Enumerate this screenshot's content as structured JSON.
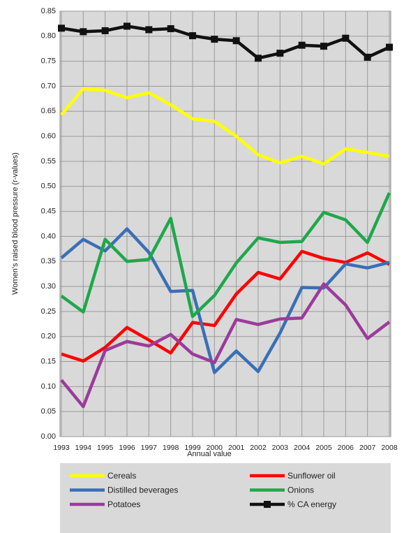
{
  "chart_data": {
    "type": "line",
    "xlabel": "Annual value",
    "ylabel": "Women's raised blood pressure (r-values)",
    "categories": [
      "1993",
      "1994",
      "1995",
      "1996",
      "1997",
      "1998",
      "1999",
      "2000",
      "2001",
      "2002",
      "2003",
      "2004",
      "2005",
      "2006",
      "2007",
      "2008"
    ],
    "ylim": [
      0,
      0.85
    ],
    "yticks": [
      {
        "value": 0,
        "label": "0.00"
      },
      0.05,
      {
        "value": 0.1,
        "label": "0.10"
      },
      0.15,
      {
        "value": 0.2,
        "label": "0.20"
      },
      0.25,
      {
        "value": 0.3,
        "label": "0.30"
      },
      0.35,
      {
        "value": 0.4,
        "label": "0.40"
      },
      0.45,
      {
        "value": 0.5,
        "label": "0.50"
      },
      0.55,
      {
        "value": 0.6,
        "label": "0.60"
      },
      0.65,
      {
        "value": 0.7,
        "label": "0.70"
      },
      0.75,
      {
        "value": 0.8,
        "label": "0.80"
      },
      0.85
    ],
    "grid": true,
    "legend": "bottom",
    "series": [
      {
        "name": "Cereals",
        "color": "#ffff00",
        "values": [
          0.643,
          0.695,
          0.692,
          0.677,
          0.687,
          0.663,
          0.635,
          0.63,
          0.6,
          0.563,
          0.547,
          0.56,
          0.545,
          0.575,
          0.568,
          0.56
        ]
      },
      {
        "name": "Sunflower oil",
        "color": "#ff0000",
        "values": [
          0.165,
          0.151,
          0.178,
          0.218,
          0.193,
          0.167,
          0.228,
          0.222,
          0.285,
          0.328,
          0.315,
          0.37,
          0.356,
          0.348,
          0.367,
          0.344
        ]
      },
      {
        "name": "Distilled beverages",
        "color": "#3a6fb5",
        "values": [
          0.357,
          0.394,
          0.371,
          0.415,
          0.368,
          0.29,
          0.292,
          0.128,
          0.171,
          0.13,
          0.207,
          0.298,
          0.297,
          0.345,
          0.337,
          0.348
        ]
      },
      {
        "name": "Onions",
        "color": "#1ea84a",
        "values": [
          0.281,
          0.249,
          0.394,
          0.35,
          0.354,
          0.436,
          0.24,
          0.282,
          0.347,
          0.397,
          0.388,
          0.39,
          0.448,
          0.433,
          0.388,
          0.487
        ]
      },
      {
        "name": "Potatoes",
        "color": "#9b3b9b",
        "values": [
          0.113,
          0.06,
          0.172,
          0.19,
          0.181,
          0.204,
          0.165,
          0.148,
          0.234,
          0.224,
          0.235,
          0.237,
          0.305,
          0.263,
          0.196,
          0.229
        ]
      },
      {
        "name": "% CA energy",
        "color": "#111111",
        "marker": "square",
        "values": [
          0.816,
          0.809,
          0.811,
          0.82,
          0.813,
          0.815,
          0.801,
          0.794,
          0.791,
          0.756,
          0.766,
          0.782,
          0.78,
          0.796,
          0.758,
          0.778
        ]
      }
    ]
  }
}
